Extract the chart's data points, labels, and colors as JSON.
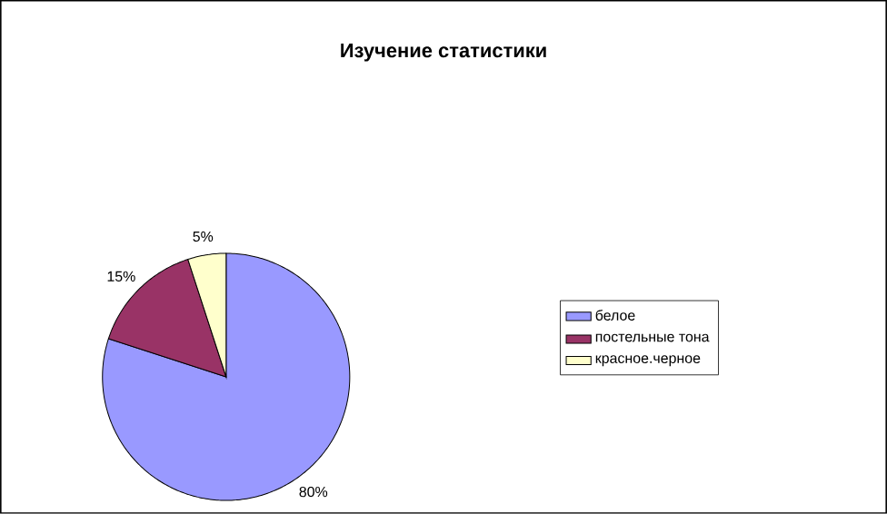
{
  "chart_data": {
    "type": "pie",
    "title": "Изучение статистики",
    "categories": [
      "белое",
      "постельные тона",
      "красное.черное"
    ],
    "values": [
      80,
      15,
      5
    ],
    "colors": [
      "#9999ff",
      "#993366",
      "#ffffcc"
    ],
    "value_labels": [
      "80%",
      "15%",
      "5%"
    ],
    "legend": "right"
  }
}
